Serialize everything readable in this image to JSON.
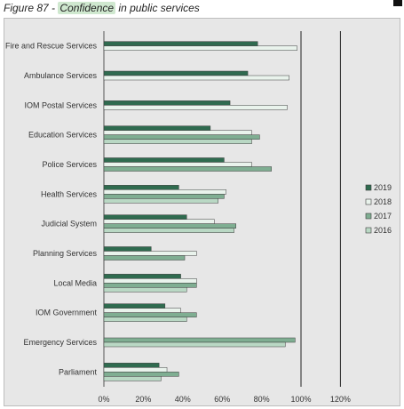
{
  "caption": {
    "figure": "Figure 87 - ",
    "highlight": "Confidence",
    "rest": " in public services"
  },
  "chart_data": {
    "type": "bar",
    "orientation": "horizontal",
    "categories": [
      "Fire and Rescue Services",
      "Ambulance Services",
      "IOM Postal Services",
      "Education Services",
      "Police Services",
      "Health Services",
      "Judicial System",
      "Planning Services",
      "Local Media",
      "IOM Government",
      "Emergency Services",
      "Parliament"
    ],
    "series": [
      {
        "name": "2019",
        "color": "#2f6b4f",
        "values": [
          78,
          73,
          64,
          54,
          61,
          38,
          42,
          24,
          39,
          31,
          null,
          28
        ]
      },
      {
        "name": "2018",
        "color": "#e9f3ec",
        "values": [
          98,
          94,
          93,
          75,
          75,
          62,
          56,
          47,
          47,
          39,
          null,
          32
        ]
      },
      {
        "name": "2017",
        "color": "#7fae92",
        "values": [
          null,
          null,
          null,
          79,
          85,
          61,
          67,
          41,
          47,
          47,
          97,
          38
        ]
      },
      {
        "name": "2016",
        "color": "#b9d8c4",
        "values": [
          null,
          null,
          null,
          75,
          null,
          58,
          66,
          null,
          42,
          42,
          92,
          29
        ]
      }
    ],
    "xlim": [
      0,
      120
    ],
    "ticks": [
      "0%",
      "20%",
      "40%",
      "60%",
      "80%",
      "100%",
      "120%"
    ],
    "grid": "vertical lines at 100% and 120%",
    "legend": "right"
  }
}
